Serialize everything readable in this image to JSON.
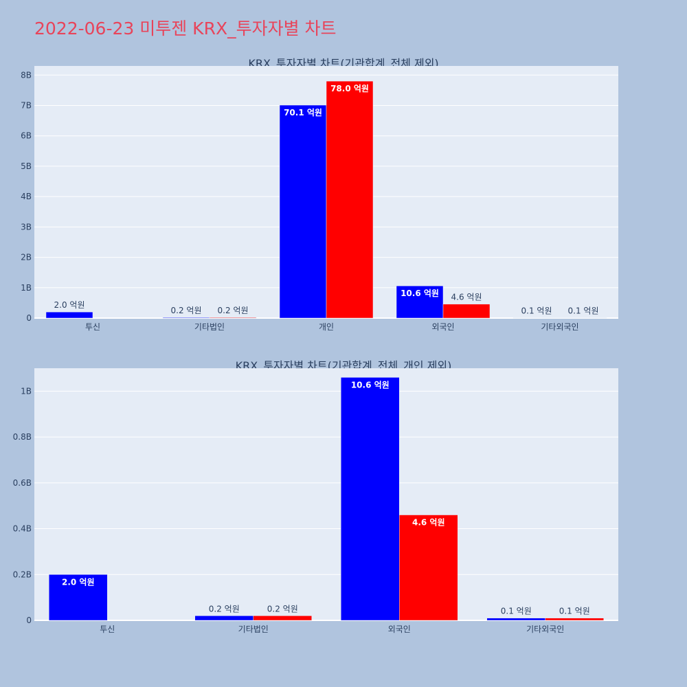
{
  "page": {
    "title": "2022-06-23 미투젠 KRX_투자자별 차트"
  },
  "colors": {
    "buy": "#0000ff",
    "sell": "#ff0000",
    "plot_bg": "#e5ecf6",
    "page_bg": "#b0c4de",
    "title": "#e8445a"
  },
  "chart_data": [
    {
      "type": "bar",
      "title": "KRX_투자자별 차트(기관합계_전체 제외)",
      "categories": [
        "투신",
        "기타법인",
        "개인",
        "외국인",
        "기타외국인"
      ],
      "series": [
        {
          "values": [
            200000000,
            20000000,
            7010000000,
            1060000000,
            10000000
          ],
          "labels": [
            "2.0 억원",
            "0.2 억원",
            "70.1 억원",
            "10.6 억원",
            "0.1 억원"
          ]
        },
        {
          "values": [
            0,
            20000000,
            7800000000,
            460000000,
            10000000
          ],
          "labels": [
            "",
            "0.2 억원",
            "78.0 억원",
            "4.6 억원",
            "0.1 억원"
          ]
        }
      ],
      "ylim": [
        0,
        8300000000
      ],
      "yticks": [
        0,
        1000000000,
        2000000000,
        3000000000,
        4000000000,
        5000000000,
        6000000000,
        7000000000,
        8000000000
      ],
      "ytick_labels": [
        "0",
        "1B",
        "2B",
        "3B",
        "4B",
        "5B",
        "6B",
        "7B",
        "8B"
      ]
    },
    {
      "type": "bar",
      "title": "KRX_투자자별 차트(기관합계_전체_개인 제외)",
      "categories": [
        "투신",
        "기타법인",
        "외국인",
        "기타외국인"
      ],
      "series": [
        {
          "values": [
            200000000,
            20000000,
            1060000000,
            10000000
          ],
          "labels": [
            "2.0 억원",
            "0.2 억원",
            "10.6 억원",
            "0.1 억원"
          ]
        },
        {
          "values": [
            0,
            20000000,
            460000000,
            10000000
          ],
          "labels": [
            "",
            "0.2 억원",
            "4.6 억원",
            "0.1 억원"
          ]
        }
      ],
      "ylim": [
        0,
        1100000000
      ],
      "yticks": [
        0,
        200000000,
        400000000,
        600000000,
        800000000,
        1000000000
      ],
      "ytick_labels": [
        "0",
        "0.2B",
        "0.4B",
        "0.6B",
        "0.8B",
        "1B"
      ]
    }
  ]
}
